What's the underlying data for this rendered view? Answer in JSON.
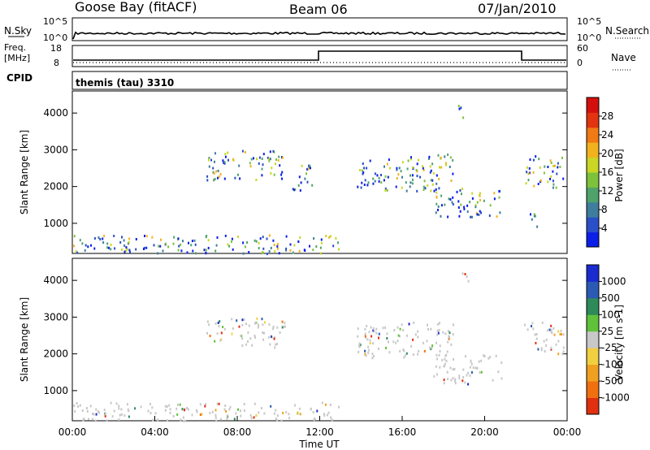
{
  "header": {
    "station": "Goose Bay (fitACF)",
    "beam": "Beam 06",
    "date": "07/Jan/2010"
  },
  "top_panels": {
    "nsky_label": "N.Sky",
    "nsearch_label": "N.Search",
    "nsky_ticks_left": [
      "10^5",
      "10^0"
    ],
    "nsky_ticks_right": [
      "10^5",
      "10^0"
    ],
    "freq_label_line1": "Freq.",
    "freq_label_line2": "[MHz]",
    "freq_ticks": [
      "18",
      "8"
    ],
    "nave_label": "Nave",
    "nave_ticks": [
      "60",
      "0"
    ],
    "cpid_label": "CPID",
    "cpid_value": "themis (tau) 3310"
  },
  "chart_data": [
    {
      "type": "heatmap",
      "name": "power",
      "ylabel": "Slant Range [km]",
      "xlabel": "Time UT",
      "xlim_hours": [
        0,
        24
      ],
      "ylim_km": [
        180,
        4600
      ],
      "yticks": [
        1000,
        2000,
        3000,
        4000
      ],
      "colorbar_label": "Power [dB]",
      "colorbar_ticks": [
        "4",
        "8",
        "12",
        "16",
        "20",
        "24",
        "28"
      ],
      "colorbar_colors": [
        "#0b1fe8",
        "#2a4fc8",
        "#3e7d9e",
        "#4fa36a",
        "#7dc23a",
        "#c9d624",
        "#f2b21e",
        "#f07a14",
        "#e23410",
        "#d4100f"
      ],
      "regions": [
        {
          "t0": 6.5,
          "t1": 10.3,
          "r0": 2200,
          "r1": 3000
        },
        {
          "t0": 10.6,
          "t1": 11.6,
          "r0": 1900,
          "r1": 2700
        },
        {
          "t0": 13.8,
          "t1": 18.5,
          "r0": 1900,
          "r1": 2900
        },
        {
          "t0": 17.5,
          "t1": 20.8,
          "r0": 1200,
          "r1": 2000
        },
        {
          "t0": 21.9,
          "t1": 23.8,
          "r0": 2000,
          "r1": 2900
        },
        {
          "t0": 21.9,
          "t1": 22.6,
          "r0": 900,
          "r1": 1300
        },
        {
          "t0": 0,
          "t1": 13,
          "r0": 200,
          "r1": 700
        },
        {
          "t0": 18.7,
          "t1": 19.2,
          "r0": 3900,
          "r1": 4300
        }
      ]
    },
    {
      "type": "heatmap",
      "name": "velocity",
      "ylabel": "Slant Range [km]",
      "xlabel": "Time UT",
      "xlim_hours": [
        0,
        24
      ],
      "ylim_km": [
        180,
        4600
      ],
      "yticks": [
        1000,
        2000,
        3000,
        4000
      ],
      "xticks": [
        "00:00",
        "04:00",
        "08:00",
        "12:00",
        "16:00",
        "20:00",
        "00:00"
      ],
      "colorbar_label": "Velocity [m s-1]",
      "colorbar_ticks": [
        "1000",
        "500",
        "100",
        "25",
        "-25",
        "-100",
        "-500",
        "-1000"
      ],
      "colorbar_colors": [
        "#1a2bd0",
        "#2b5ab4",
        "#2f8a5a",
        "#5fc23a",
        "#c8c8c8",
        "#f0d040",
        "#f0a020",
        "#f07010",
        "#e03010"
      ],
      "regions": [
        {
          "t0": 6.5,
          "t1": 10.3,
          "r0": 2200,
          "r1": 3000
        },
        {
          "t0": 13.8,
          "t1": 18.5,
          "r0": 1900,
          "r1": 2900
        },
        {
          "t0": 17.5,
          "t1": 20.8,
          "r0": 1200,
          "r1": 2000
        },
        {
          "t0": 21.9,
          "t1": 23.8,
          "r0": 2000,
          "r1": 2900
        },
        {
          "t0": 0,
          "t1": 13,
          "r0": 200,
          "r1": 700
        },
        {
          "t0": 18.7,
          "t1": 19.2,
          "r0": 3900,
          "r1": 4300
        }
      ]
    }
  ]
}
